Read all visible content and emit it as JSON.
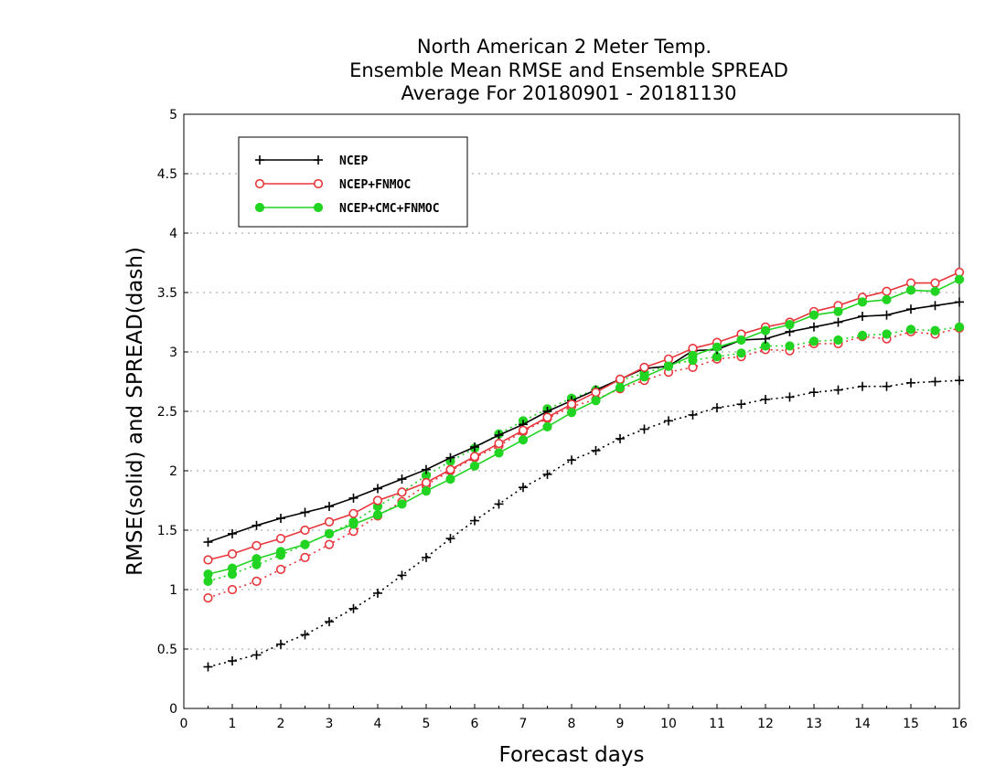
{
  "chart_data": {
    "type": "line",
    "title_lines": [
      "North American 2 Meter Temp.",
      "Ensemble Mean RMSE and Ensemble SPREAD",
      "Average For 20180901 - 20181130"
    ],
    "xlabel": "Forecast days",
    "ylabel": "RMSE(solid) and SPREAD(dash)",
    "xlim": [
      0,
      16
    ],
    "ylim": [
      0,
      5
    ],
    "x_ticks": [
      "0",
      "1",
      "2",
      "3",
      "4",
      "5",
      "6",
      "7",
      "8",
      "9",
      "10",
      "11",
      "12",
      "13",
      "14",
      "15",
      "16"
    ],
    "y_ticks": [
      "0",
      "0.5",
      "1",
      "1.5",
      "2",
      "2.5",
      "3",
      "3.5",
      "4",
      "4.5",
      "5"
    ],
    "grid": "horizontal dotted",
    "legend_position": "top-left",
    "x": [
      0.5,
      1,
      1.5,
      2,
      2.5,
      3,
      3.5,
      4,
      4.5,
      5,
      5.5,
      6,
      6.5,
      7,
      7.5,
      8,
      8.5,
      9,
      9.5,
      10,
      10.5,
      11,
      11.5,
      12,
      12.5,
      13,
      13.5,
      14,
      14.5,
      15,
      15.5,
      16
    ],
    "series": [
      {
        "name": "NCEP",
        "color": "#000000",
        "marker": "plus",
        "rmse": [
          1.4,
          1.47,
          1.54,
          1.6,
          1.65,
          1.7,
          1.77,
          1.85,
          1.93,
          2.01,
          2.11,
          2.2,
          2.3,
          2.39,
          2.5,
          2.59,
          2.68,
          2.77,
          2.86,
          2.88,
          3.01,
          3.02,
          3.1,
          3.11,
          3.17,
          3.21,
          3.25,
          3.3,
          3.31,
          3.36,
          3.39,
          3.42
        ],
        "spread": [
          0.35,
          0.4,
          0.45,
          0.54,
          0.62,
          0.73,
          0.84,
          0.97,
          1.12,
          1.27,
          1.43,
          1.58,
          1.72,
          1.86,
          1.97,
          2.09,
          2.17,
          2.27,
          2.35,
          2.42,
          2.47,
          2.53,
          2.56,
          2.6,
          2.62,
          2.66,
          2.68,
          2.71,
          2.71,
          2.74,
          2.75,
          2.76
        ]
      },
      {
        "name": "NCEP+FNMOC",
        "color": "#e8363c",
        "marker": "open-circle",
        "rmse": [
          1.25,
          1.3,
          1.37,
          1.43,
          1.5,
          1.57,
          1.64,
          1.75,
          1.82,
          1.9,
          2.01,
          2.12,
          2.23,
          2.34,
          2.45,
          2.56,
          2.66,
          2.77,
          2.87,
          2.94,
          3.03,
          3.08,
          3.15,
          3.21,
          3.25,
          3.34,
          3.39,
          3.46,
          3.51,
          3.58,
          3.58,
          3.67
        ],
        "spread": [
          0.93,
          1.0,
          1.07,
          1.17,
          1.27,
          1.38,
          1.49,
          1.62,
          1.74,
          1.88,
          2.0,
          2.11,
          2.21,
          2.33,
          2.44,
          2.54,
          2.6,
          2.69,
          2.76,
          2.83,
          2.87,
          2.94,
          2.96,
          3.02,
          3.01,
          3.07,
          3.07,
          3.13,
          3.11,
          3.17,
          3.15,
          3.2
        ]
      },
      {
        "name": "NCEP+CMC+FNMOC",
        "color": "#22d422",
        "marker": "filled-circle",
        "rmse": [
          1.13,
          1.18,
          1.26,
          1.32,
          1.38,
          1.47,
          1.55,
          1.63,
          1.72,
          1.83,
          1.93,
          2.04,
          2.15,
          2.26,
          2.37,
          2.49,
          2.59,
          2.7,
          2.79,
          2.88,
          2.97,
          3.04,
          3.1,
          3.18,
          3.23,
          3.31,
          3.34,
          3.42,
          3.44,
          3.52,
          3.51,
          3.61
        ],
        "spread": [
          1.07,
          1.13,
          1.21,
          1.29,
          1.38,
          1.47,
          1.57,
          1.7,
          1.82,
          1.96,
          2.08,
          2.19,
          2.31,
          2.42,
          2.52,
          2.61,
          2.68,
          2.76,
          2.82,
          2.89,
          2.93,
          2.96,
          2.99,
          3.05,
          3.05,
          3.09,
          3.1,
          3.14,
          3.15,
          3.19,
          3.18,
          3.21
        ]
      }
    ]
  }
}
